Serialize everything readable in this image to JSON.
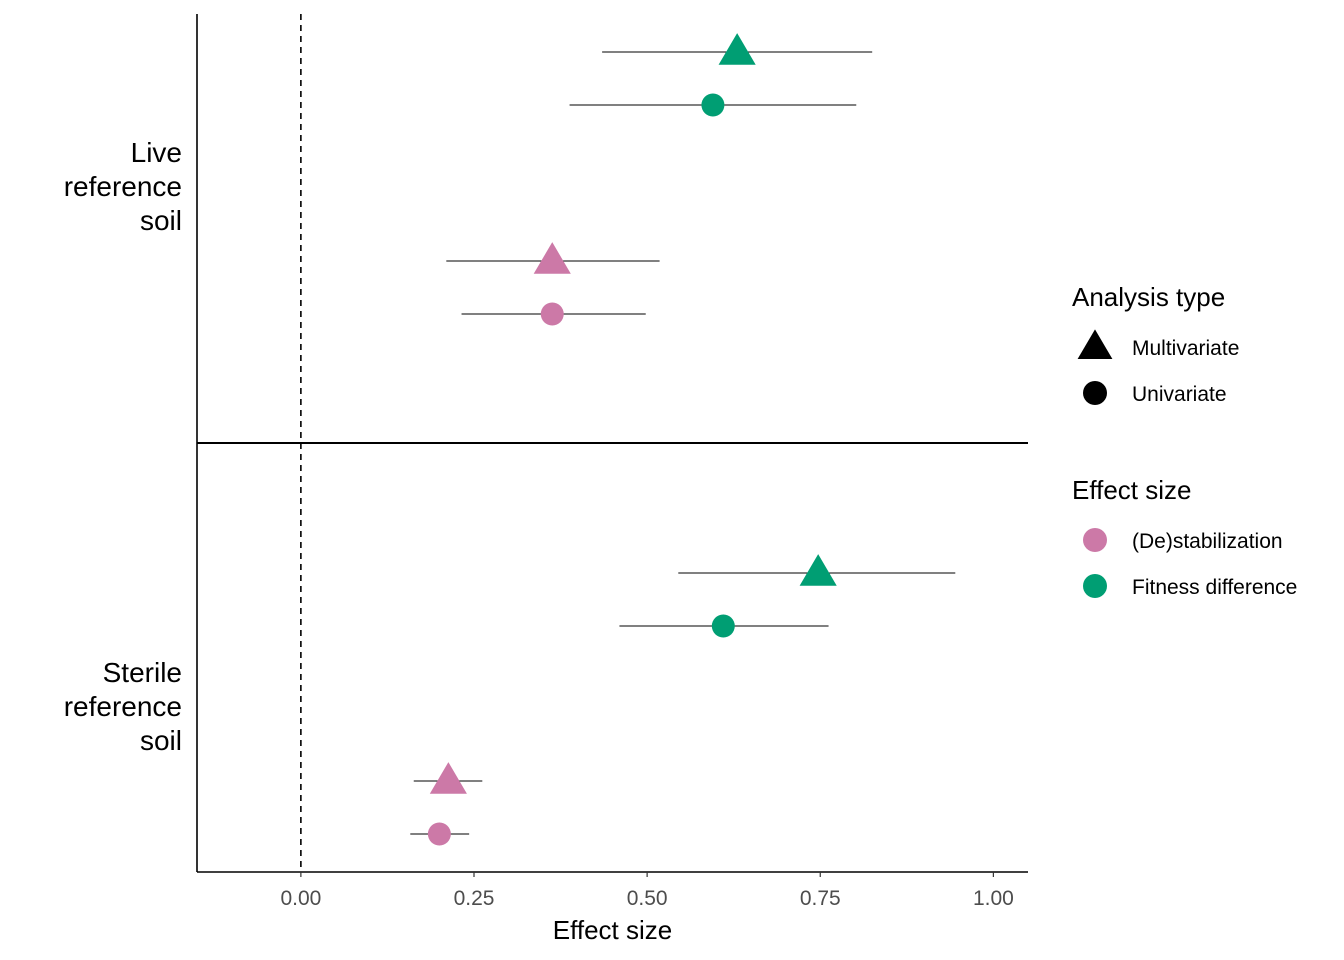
{
  "chart_data": {
    "type": "scatter",
    "subtype": "forest-plot",
    "xlabel": "Effect size",
    "xlim": [
      -0.15,
      1.05
    ],
    "xticks": [
      "0.00",
      "0.25",
      "0.50",
      "0.75",
      "1.00"
    ],
    "xtick_values": [
      0,
      0.25,
      0.5,
      0.75,
      1.0
    ],
    "reference_line": {
      "x": 0,
      "style": "dashed"
    },
    "grid": false,
    "panels": [
      {
        "label_lines": [
          "Live",
          "reference",
          "soil"
        ],
        "points": [
          {
            "effect": "Fitness difference",
            "analysis": "Multivariate",
            "estimate": 0.63,
            "lower": 0.435,
            "upper": 0.825
          },
          {
            "effect": "Fitness difference",
            "analysis": "Univariate",
            "estimate": 0.595,
            "lower": 0.388,
            "upper": 0.802
          },
          {
            "effect": "(De)stabilization",
            "analysis": "Multivariate",
            "estimate": 0.363,
            "lower": 0.21,
            "upper": 0.518
          },
          {
            "effect": "(De)stabilization",
            "analysis": "Univariate",
            "estimate": 0.363,
            "lower": 0.232,
            "upper": 0.498
          }
        ]
      },
      {
        "label_lines": [
          "Sterile",
          "reference",
          "soil"
        ],
        "points": [
          {
            "effect": "Fitness difference",
            "analysis": "Multivariate",
            "estimate": 0.747,
            "lower": 0.545,
            "upper": 0.945
          },
          {
            "effect": "Fitness difference",
            "analysis": "Univariate",
            "estimate": 0.61,
            "lower": 0.46,
            "upper": 0.762
          },
          {
            "effect": "(De)stabilization",
            "analysis": "Multivariate",
            "estimate": 0.213,
            "lower": 0.163,
            "upper": 0.262
          },
          {
            "effect": "(De)stabilization",
            "analysis": "Univariate",
            "estimate": 0.2,
            "lower": 0.158,
            "upper": 0.243
          }
        ]
      }
    ],
    "legend": {
      "placement": "right",
      "groups": [
        {
          "title": "Analysis type",
          "items": [
            {
              "label": "Multivariate",
              "shape": "triangle",
              "color": "#000000"
            },
            {
              "label": "Univariate",
              "shape": "circle",
              "color": "#000000"
            }
          ]
        },
        {
          "title": "Effect size",
          "items": [
            {
              "label": "(De)stabilization",
              "shape": "circle",
              "color": "#cc79a7"
            },
            {
              "label": "Fitness difference",
              "shape": "circle",
              "color": "#009e73"
            }
          ]
        }
      ]
    },
    "colors": {
      "(De)stabilization": "#cc79a7",
      "Fitness difference": "#009e73"
    }
  }
}
